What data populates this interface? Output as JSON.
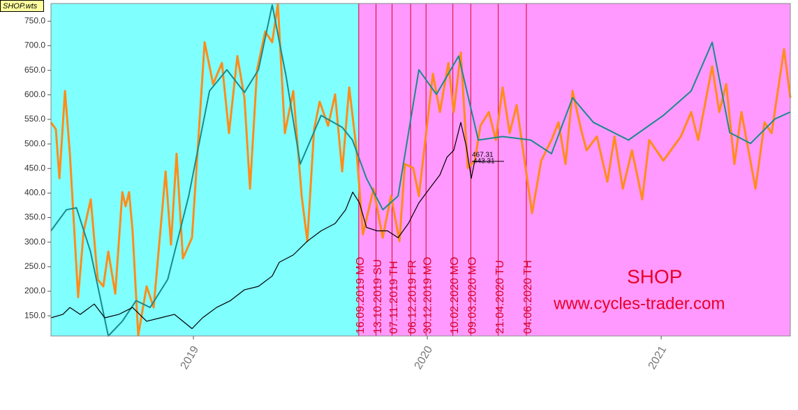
{
  "chart_data": {
    "type": "line",
    "file_label": "SHOP.wts",
    "xlim": [
      2018.391,
      2021.552
    ],
    "xticks": [
      2019,
      2020,
      2021
    ],
    "ylim": [
      109,
      786
    ],
    "yticks": [
      {
        "value": 150,
        "label": "150.0"
      },
      {
        "value": 200,
        "label": "200.0"
      },
      {
        "value": 250,
        "label": "250.0"
      },
      {
        "value": 300,
        "label": "300.0"
      },
      {
        "value": 350,
        "label": "350.0"
      },
      {
        "value": 400,
        "label": "400.0"
      },
      {
        "value": 450,
        "label": "450.0"
      },
      {
        "value": 500,
        "label": "500.0"
      },
      {
        "value": 550,
        "label": "550.0"
      },
      {
        "value": 600,
        "label": "600.0"
      },
      {
        "value": 650,
        "label": "650.0"
      },
      {
        "value": 700,
        "label": "700.0"
      },
      {
        "value": 750,
        "label": "750.0"
      }
    ],
    "background_before": "#80ffff",
    "background_after": "#ff99ff",
    "cycle_color": "#d8002a",
    "cycle_dates": [
      "16.09.2019 MO",
      "13.10.2019 SU",
      "07.11.2019 TH",
      "06.12.2019 FR",
      "30.12.2019 MO",
      "10.02.2020 MO",
      "09.03.2020 MO",
      "21.04.2020 TU",
      "04.06.2020 TH"
    ],
    "annotations": [
      "467.31",
      "443.31"
    ],
    "symbol": "SHOP",
    "website": "www.cycles-trader.com",
    "series": [
      {
        "color": "#ff8c1a",
        "width": 3,
        "x": [
          2018.391,
          2018.412,
          2018.427,
          2018.451,
          2018.472,
          2018.507,
          2018.531,
          2018.561,
          2018.591,
          2018.615,
          2018.636,
          2018.666,
          2018.696,
          2018.71,
          2018.725,
          2018.74,
          2018.764,
          2018.8,
          2018.83,
          2018.881,
          2018.904,
          2018.928,
          2018.955,
          2018.994,
          2019.048,
          2019.084,
          2019.122,
          2019.152,
          2019.188,
          2019.218,
          2019.242,
          2019.272,
          2019.307,
          2019.337,
          2019.361,
          2019.391,
          2019.427,
          2019.463,
          2019.487,
          2019.516,
          2019.54,
          2019.576,
          2019.606,
          2019.636,
          2019.666,
          2019.696,
          2019.725,
          2019.77,
          2019.809,
          2019.845,
          2019.881,
          2019.904,
          2019.94,
          2019.964,
          2020.024,
          2020.054,
          2020.09,
          2020.113,
          2020.143,
          2020.173,
          2020.203,
          2020.227,
          2020.263,
          2020.293,
          2020.322,
          2020.352,
          2020.382,
          2020.448,
          2020.487,
          2020.531,
          2020.561,
          2020.591,
          2020.621,
          2020.657,
          2020.681,
          2020.725,
          2020.77,
          2020.8,
          2020.836,
          2020.875,
          2020.919,
          2020.949,
          2021.009,
          2021.084,
          2021.128,
          2021.158,
          2021.218,
          2021.248,
          2021.278,
          2021.313,
          2021.343,
          2021.403,
          2021.442,
          2021.472,
          2021.525,
          2021.552
        ],
        "values": [
          544,
          530,
          430,
          608,
          480,
          188,
          323,
          387,
          224,
          210,
          281,
          195,
          402,
          373,
          402,
          323,
          110,
          210,
          167,
          444,
          295,
          480,
          267,
          309,
          707,
          622,
          665,
          522,
          679,
          594,
          409,
          651,
          729,
          707,
          785,
          522,
          608,
          394,
          302,
          530,
          586,
          537,
          601,
          444,
          615,
          494,
          316,
          409,
          309,
          394,
          302,
          459,
          451,
          394,
          643,
          565,
          665,
          565,
          686,
          451,
          466,
          537,
          565,
          508,
          615,
          522,
          579,
          359,
          466,
          508,
          544,
          459,
          608,
          530,
          487,
          515,
          423,
          515,
          409,
          487,
          387,
          508,
          466,
          515,
          565,
          508,
          658,
          565,
          622,
          459,
          565,
          409,
          544,
          522,
          693,
          594
        ]
      },
      {
        "color": "#1a8a8a",
        "width": 2,
        "x": [
          2018.391,
          2018.457,
          2018.5,
          2018.56,
          2018.636,
          2018.696,
          2018.755,
          2018.815,
          2018.89,
          2018.98,
          2019.069,
          2019.143,
          2019.218,
          2019.278,
          2019.337,
          2019.397,
          2019.457,
          2019.546,
          2019.636,
          2019.68,
          2019.74,
          2019.81,
          2019.875,
          2019.964,
          2020.039,
          2020.134,
          2020.218,
          2020.322,
          2020.442,
          2020.531,
          2020.621,
          2020.71,
          2020.86,
          2021.009,
          2021.128,
          2021.218,
          2021.293,
          2021.382,
          2021.487,
          2021.552
        ],
        "values": [
          323,
          366,
          370,
          281,
          109,
          139,
          181,
          167,
          224,
          394,
          608,
          651,
          605,
          651,
          783,
          636,
          459,
          558,
          534,
          508,
          430,
          366,
          394,
          651,
          601,
          679,
          508,
          515,
          508,
          480,
          594,
          544,
          508,
          558,
          608,
          707,
          523,
          501,
          551,
          565
        ]
      },
      {
        "color": "#000000",
        "width": 1.2,
        "x": [
          2018.391,
          2018.442,
          2018.472,
          2018.516,
          2018.576,
          2018.621,
          2018.681,
          2018.74,
          2018.8,
          2018.86,
          2018.919,
          2018.994,
          2019.039,
          2019.099,
          2019.158,
          2019.218,
          2019.278,
          2019.337,
          2019.367,
          2019.427,
          2019.487,
          2019.546,
          2019.606,
          2019.651,
          2019.681,
          2019.71,
          2019.74,
          2019.785,
          2019.83,
          2019.875,
          2019.919,
          2019.964,
          2020.009,
          2020.054,
          2020.084,
          2020.113,
          2020.143,
          2020.167,
          2020.188,
          2020.203
        ],
        "values": [
          146,
          153,
          167,
          153,
          174,
          146,
          153,
          167,
          139,
          146,
          153,
          124,
          146,
          167,
          181,
          203,
          210,
          231,
          259,
          274,
          302,
          323,
          338,
          366,
          402,
          380,
          330,
          323,
          323,
          309,
          338,
          380,
          409,
          437,
          473,
          487,
          544,
          494,
          430,
          466
        ]
      }
    ]
  }
}
